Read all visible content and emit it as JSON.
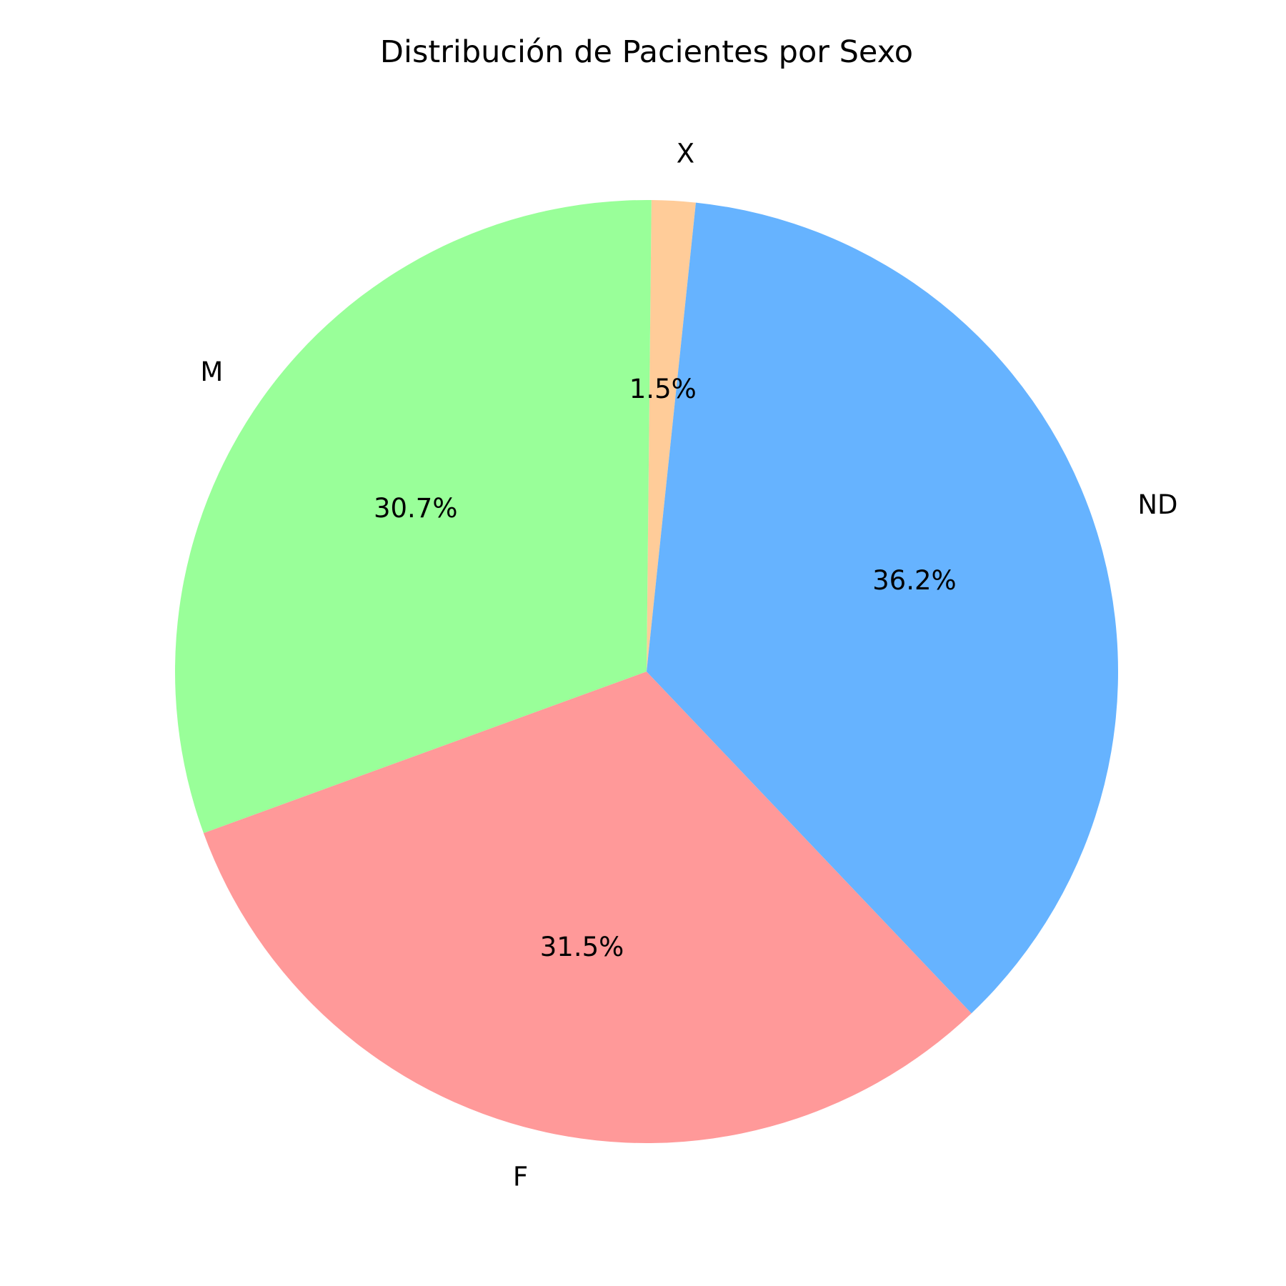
{
  "chart_data": {
    "type": "pie",
    "title": "Distribución de Pacientes por Sexo",
    "slices": [
      {
        "label": "X",
        "value": 1.5,
        "pct_label": "1.5%",
        "color": "#ffcc99"
      },
      {
        "label": "M",
        "value": 30.7,
        "pct_label": "30.7%",
        "color": "#99ff99"
      },
      {
        "label": "F",
        "value": 31.5,
        "pct_label": "31.5%",
        "color": "#ff9999"
      },
      {
        "label": "ND",
        "value": 36.2,
        "pct_label": "36.2%",
        "color": "#66b3ff"
      }
    ]
  }
}
